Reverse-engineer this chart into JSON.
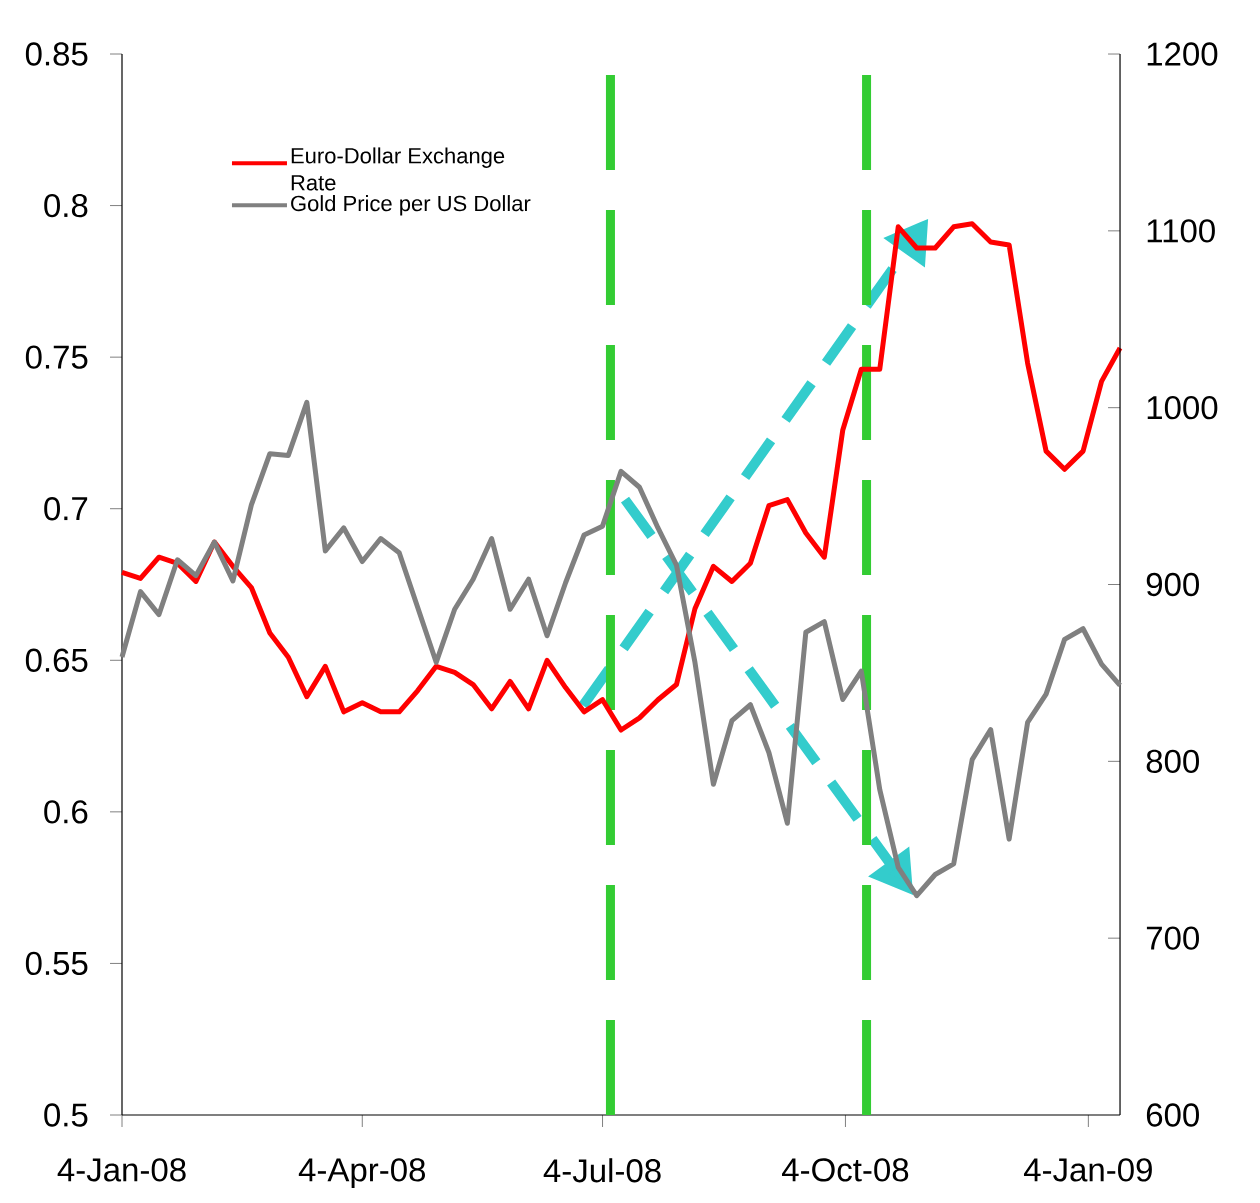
{
  "chart_data": {
    "type": "line",
    "x": [
      "2008-01-04",
      "2008-01-11",
      "2008-01-18",
      "2008-01-25",
      "2008-02-01",
      "2008-02-08",
      "2008-02-15",
      "2008-02-22",
      "2008-02-29",
      "2008-03-07",
      "2008-03-14",
      "2008-03-21",
      "2008-03-28",
      "2008-04-04",
      "2008-04-11",
      "2008-04-18",
      "2008-04-25",
      "2008-05-02",
      "2008-05-09",
      "2008-05-16",
      "2008-05-23",
      "2008-05-30",
      "2008-06-06",
      "2008-06-13",
      "2008-06-20",
      "2008-06-27",
      "2008-07-04",
      "2008-07-11",
      "2008-07-18",
      "2008-07-25",
      "2008-08-01",
      "2008-08-08",
      "2008-08-15",
      "2008-08-22",
      "2008-08-29",
      "2008-09-05",
      "2008-09-12",
      "2008-09-19",
      "2008-09-26",
      "2008-10-03",
      "2008-10-10",
      "2008-10-17",
      "2008-10-24",
      "2008-10-31",
      "2008-11-07",
      "2008-11-14",
      "2008-11-21",
      "2008-11-28",
      "2008-12-05",
      "2008-12-12",
      "2008-12-19",
      "2008-12-26",
      "2009-01-02",
      "2009-01-09",
      "2009-01-16"
    ],
    "xlim": [
      "2008-01-04",
      "2009-01-16"
    ],
    "xticks": [
      {
        "value": "2008-01-04",
        "label": "4-Jan-08"
      },
      {
        "value": "2008-04-04",
        "label": "4-Apr-08"
      },
      {
        "value": "2008-07-04",
        "label": "4-Jul-08"
      },
      {
        "value": "2008-10-04",
        "label": "4-Oct-08"
      },
      {
        "value": "2009-01-04",
        "label": "4-Jan-09"
      }
    ],
    "ylim": [
      0.5,
      0.85
    ],
    "yticks": [
      0.5,
      0.55,
      0.6,
      0.65,
      0.7,
      0.75,
      0.8,
      0.85
    ],
    "y2lim": [
      600,
      1200
    ],
    "y2ticks": [
      600,
      700,
      800,
      900,
      1000,
      1100,
      1200
    ],
    "series": [
      {
        "name": "Euro-Dollar Exchange Rate",
        "color": "#ff0000",
        "values": [
          0.679,
          0.677,
          0.684,
          0.682,
          0.676,
          0.689,
          0.681,
          0.674,
          0.659,
          0.651,
          0.638,
          0.648,
          0.633,
          0.636,
          0.633,
          0.633,
          0.64,
          0.648,
          0.646,
          0.642,
          0.634,
          0.643,
          0.634,
          0.65,
          0.641,
          0.633,
          0.637,
          0.627,
          0.631,
          0.637,
          0.642,
          0.667,
          0.681,
          0.676,
          0.682,
          0.701,
          0.703,
          0.692,
          0.684,
          0.726,
          0.746,
          0.746,
          0.793,
          0.786,
          0.786,
          0.793,
          0.794,
          0.788,
          0.787,
          0.748,
          0.719,
          0.713,
          0.719,
          0.742,
          0.753
        ]
      },
      {
        "name": "Gold Price per US Dollar",
        "color": "#808080",
        "axis": "y2",
        "values": [
          859,
          896,
          883,
          914,
          905,
          924,
          902,
          945,
          974,
          973,
          1003,
          919,
          932,
          913,
          926,
          918,
          887,
          856,
          886,
          903,
          926,
          886,
          903,
          871,
          901,
          928,
          933,
          964,
          955,
          932,
          911,
          856,
          787,
          823,
          832,
          805,
          765,
          873,
          879,
          835,
          851,
          784,
          740,
          724,
          736,
          742,
          801,
          818,
          756,
          822,
          838,
          869,
          875,
          855,
          843
        ]
      }
    ],
    "ref_lines": [
      {
        "axis": "x",
        "value": "2008-07-07",
        "color": "#33cc33",
        "line_style": "dashed"
      },
      {
        "axis": "x",
        "value": "2008-10-12",
        "color": "#33cc33",
        "line_style": "dashed"
      }
    ],
    "legend": "top left"
  }
}
